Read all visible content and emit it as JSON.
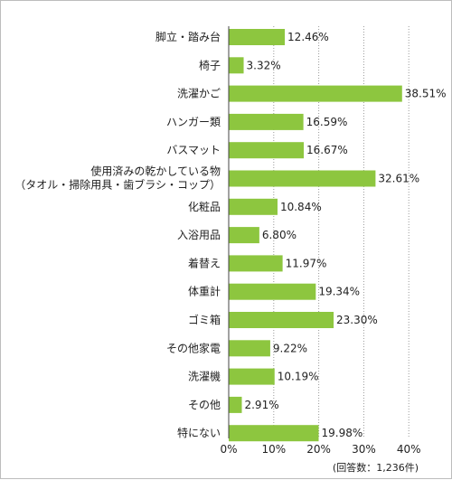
{
  "chart_data": {
    "type": "bar",
    "orientation": "horizontal",
    "categories": [
      [
        "脚立・踏み台"
      ],
      [
        "椅子"
      ],
      [
        "洗濯かご"
      ],
      [
        "ハンガー類"
      ],
      [
        "バスマット"
      ],
      [
        "使用済みの乾かしている物",
        "（タオル・掃除用具・歯ブラシ・コップ）"
      ],
      [
        "化粧品"
      ],
      [
        "入浴用品"
      ],
      [
        "着替え"
      ],
      [
        "体重計"
      ],
      [
        "ゴミ箱"
      ],
      [
        "その他家電"
      ],
      [
        "洗濯機"
      ],
      [
        "その他"
      ],
      [
        "特にない"
      ]
    ],
    "values": [
      12.46,
      3.32,
      38.51,
      16.59,
      16.67,
      32.61,
      10.84,
      6.8,
      11.97,
      19.34,
      23.3,
      9.22,
      10.19,
      2.91,
      19.98
    ],
    "value_labels": [
      "12.46%",
      "3.32%",
      "38.51%",
      "16.59%",
      "16.67%",
      "32.61%",
      "10.84%",
      "6.80%",
      "11.97%",
      "19.34%",
      "23.30%",
      "9.22%",
      "10.19%",
      "2.91%",
      "19.98%"
    ],
    "xlim": [
      0,
      40
    ],
    "xticks": [
      0,
      10,
      20,
      30,
      40
    ],
    "xtick_labels": [
      "0%",
      "10%",
      "20%",
      "30%",
      "40%"
    ],
    "grid": "vertical dotted",
    "bar_color": "#8dc63f",
    "note": "(回答数：1,236件)"
  }
}
